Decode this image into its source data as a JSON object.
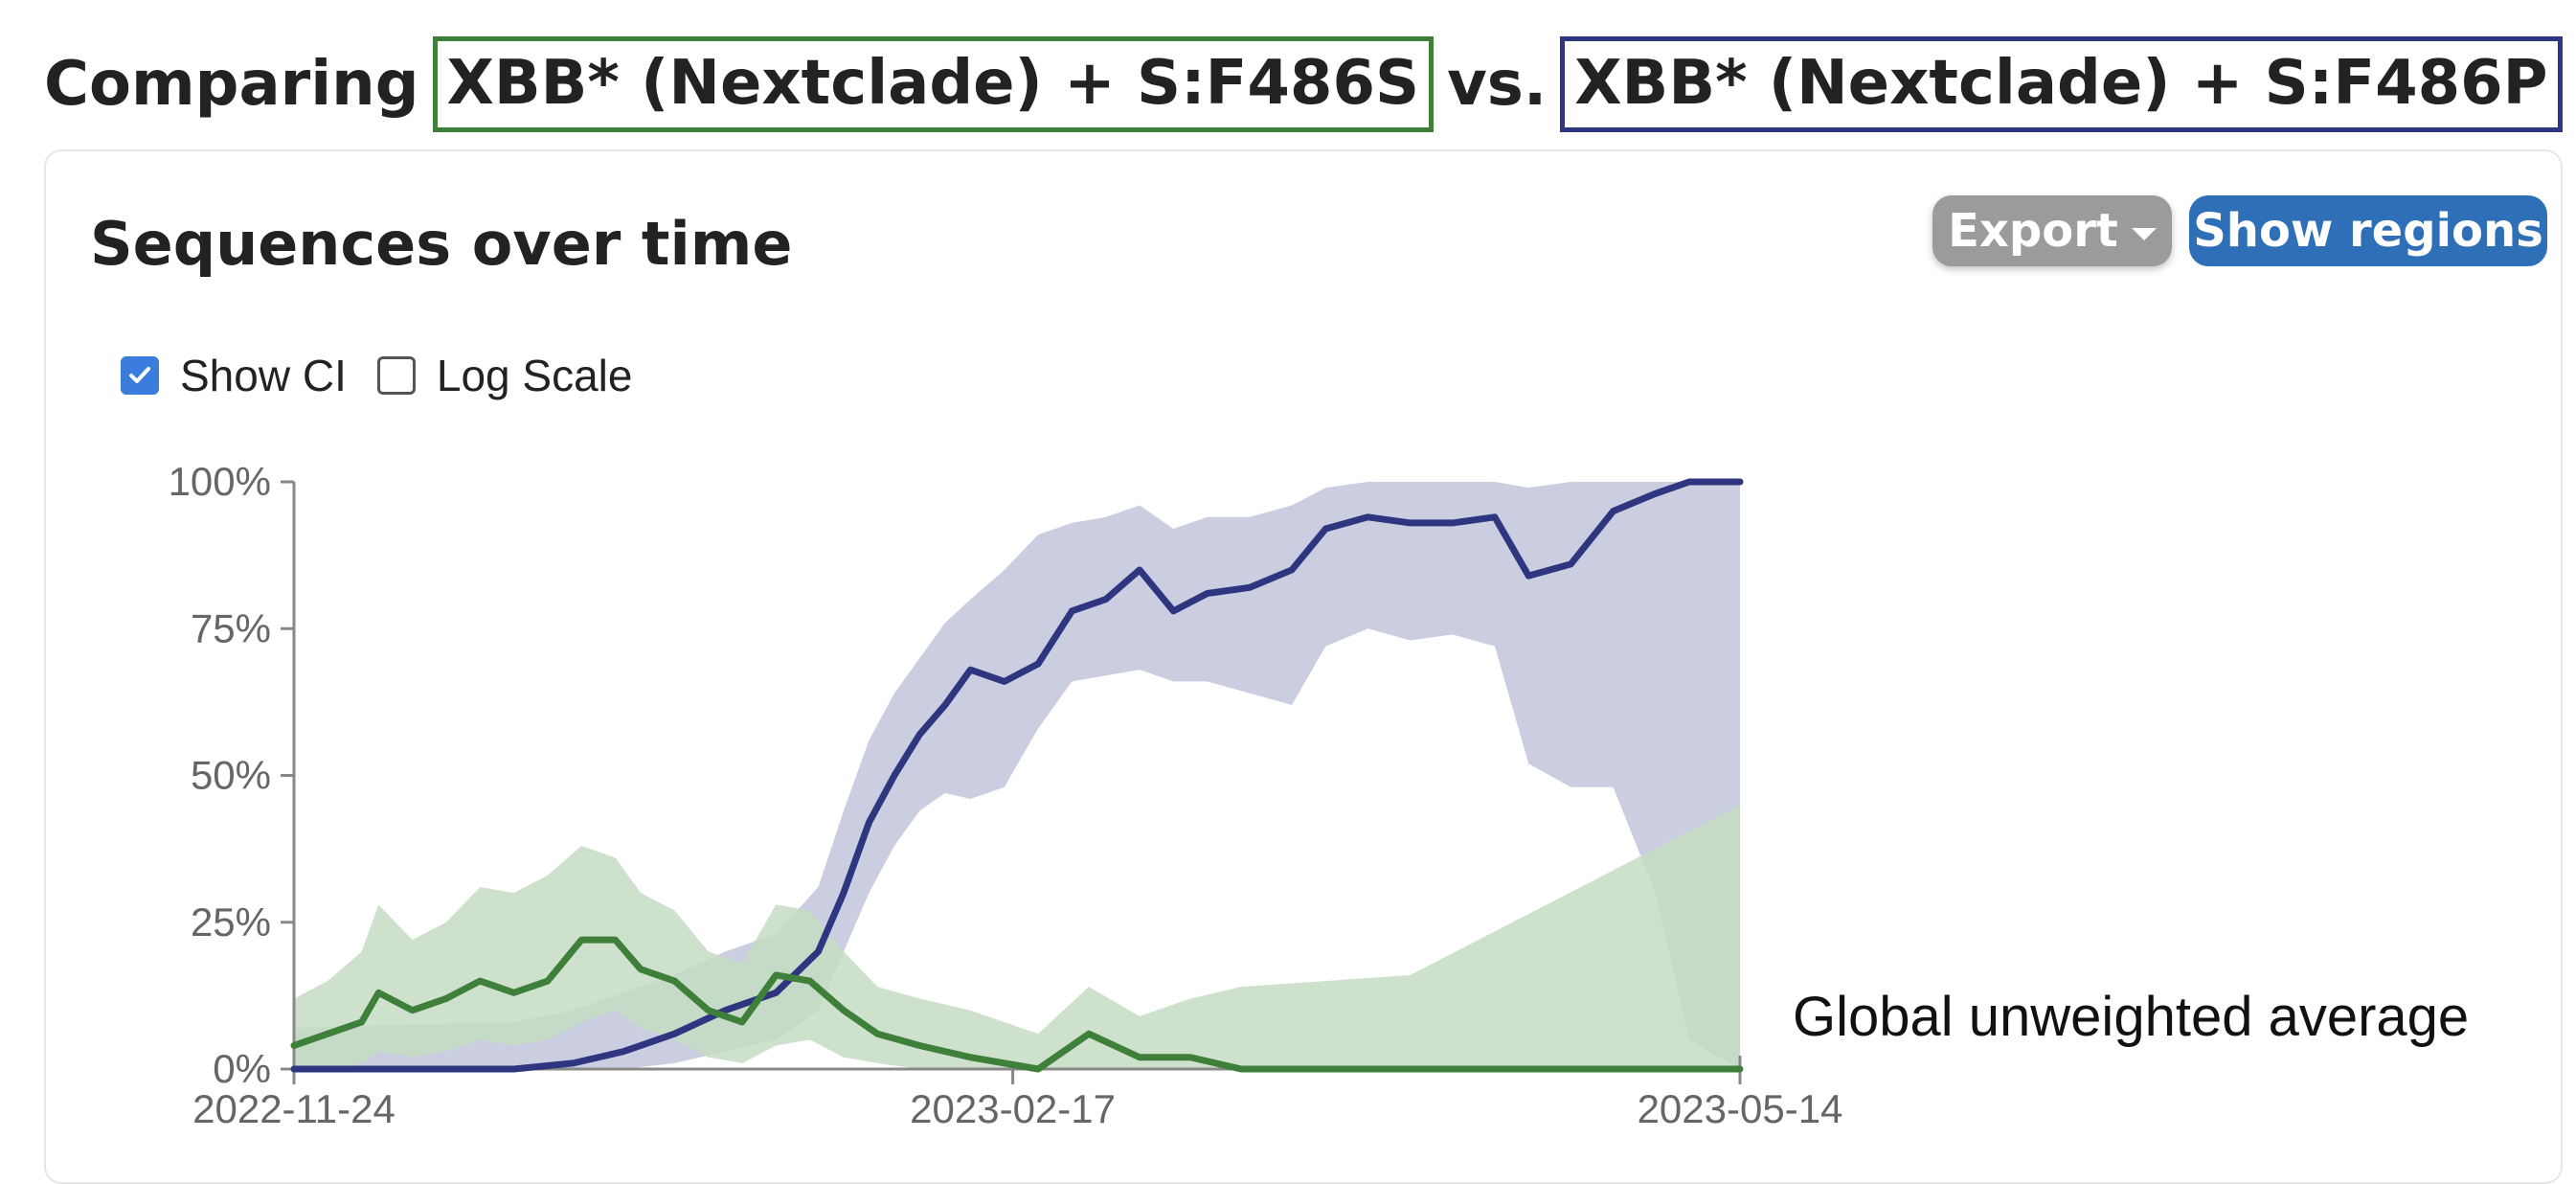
{
  "heading": {
    "prefix": "Comparing",
    "variant_a": "XBB* (Nextclade) + S:F486S",
    "separator": "vs.",
    "variant_b": "XBB* (Nextclade) + S:F486P",
    "variant_a_color": "#3e7f3a",
    "variant_b_color": "#2e3680"
  },
  "card": {
    "title": "Sequences over time",
    "export_label": "Export",
    "show_regions_label": "Show regions",
    "show_ci_label": "Show CI",
    "show_ci_checked": true,
    "log_scale_label": "Log Scale",
    "log_scale_checked": false
  },
  "chart_data": {
    "type": "line",
    "y_format": "percent",
    "ylim": [
      0,
      100
    ],
    "yticks": [
      "0%",
      "25%",
      "50%",
      "75%",
      "100%"
    ],
    "xticks": [
      "2022-11-24",
      "2023-02-17",
      "2023-05-14"
    ],
    "xlim": [
      "2022-11-24",
      "2023-05-14"
    ],
    "annotation": "Global unweighted average",
    "show_ci": true,
    "series": [
      {
        "color": "#2e3680",
        "ci_color": "#c2c5dc",
        "points": [
          [
            "2022-11-24",
            0
          ],
          [
            "2022-12-20",
            0
          ],
          [
            "2022-12-27",
            1
          ],
          [
            "2023-01-02",
            3
          ],
          [
            "2023-01-08",
            6
          ],
          [
            "2023-01-14",
            10
          ],
          [
            "2023-01-20",
            13
          ],
          [
            "2023-01-25",
            20
          ],
          [
            "2023-01-28",
            30
          ],
          [
            "2023-01-31",
            42
          ],
          [
            "2023-02-03",
            50
          ],
          [
            "2023-02-06",
            57
          ],
          [
            "2023-02-09",
            62
          ],
          [
            "2023-02-12",
            68
          ],
          [
            "2023-02-16",
            66
          ],
          [
            "2023-02-20",
            69
          ],
          [
            "2023-02-24",
            78
          ],
          [
            "2023-02-28",
            80
          ],
          [
            "2023-03-04",
            85
          ],
          [
            "2023-03-08",
            78
          ],
          [
            "2023-03-12",
            81
          ],
          [
            "2023-03-17",
            82
          ],
          [
            "2023-03-22",
            85
          ],
          [
            "2023-03-26",
            92
          ],
          [
            "2023-03-31",
            94
          ],
          [
            "2023-04-05",
            93
          ],
          [
            "2023-04-10",
            93
          ],
          [
            "2023-04-15",
            94
          ],
          [
            "2023-04-19",
            84
          ],
          [
            "2023-04-24",
            86
          ],
          [
            "2023-04-29",
            95
          ],
          [
            "2023-05-04",
            98
          ],
          [
            "2023-05-08",
            100
          ],
          [
            "2023-05-14",
            100
          ]
        ],
        "ci_low": [
          0,
          0,
          0,
          0,
          1,
          3,
          5,
          10,
          20,
          30,
          38,
          44,
          47,
          46,
          48,
          58,
          66,
          67,
          68,
          66,
          66,
          64,
          62,
          72,
          75,
          73,
          74,
          72,
          52,
          48,
          48,
          30,
          5,
          0
        ],
        "ci_high": [
          7,
          8,
          10,
          13,
          16,
          20,
          23,
          31,
          44,
          56,
          64,
          70,
          76,
          80,
          85,
          91,
          93,
          94,
          96,
          92,
          94,
          94,
          96,
          99,
          100,
          100,
          100,
          100,
          99,
          100,
          100,
          100,
          100,
          100
        ]
      },
      {
        "color": "#3e7f3a",
        "ci_color": "#c5dcc3",
        "points": [
          [
            "2022-11-24",
            4
          ],
          [
            "2022-11-28",
            6
          ],
          [
            "2022-12-02",
            8
          ],
          [
            "2022-12-04",
            13
          ],
          [
            "2022-12-08",
            10
          ],
          [
            "2022-12-12",
            12
          ],
          [
            "2022-12-16",
            15
          ],
          [
            "2022-12-20",
            13
          ],
          [
            "2022-12-24",
            15
          ],
          [
            "2022-12-28",
            22
          ],
          [
            "2023-01-01",
            22
          ],
          [
            "2023-01-04",
            17
          ],
          [
            "2023-01-08",
            15
          ],
          [
            "2023-01-12",
            10
          ],
          [
            "2023-01-16",
            8
          ],
          [
            "2023-01-20",
            16
          ],
          [
            "2023-01-24",
            15
          ],
          [
            "2023-01-28",
            10
          ],
          [
            "2023-02-01",
            6
          ],
          [
            "2023-02-06",
            4
          ],
          [
            "2023-02-12",
            2
          ],
          [
            "2023-02-20",
            0
          ],
          [
            "2023-02-26",
            6
          ],
          [
            "2023-03-04",
            2
          ],
          [
            "2023-03-10",
            2
          ],
          [
            "2023-03-16",
            0
          ],
          [
            "2023-04-05",
            0
          ],
          [
            "2023-05-14",
            0
          ]
        ],
        "ci_low": [
          0,
          0,
          1,
          3,
          2,
          3,
          5,
          4,
          5,
          8,
          10,
          7,
          5,
          2,
          1,
          4,
          5,
          2,
          1,
          0,
          0,
          0,
          0,
          0,
          0,
          0,
          0,
          0
        ],
        "ci_high": [
          12,
          15,
          20,
          28,
          22,
          25,
          31,
          30,
          33,
          38,
          36,
          30,
          27,
          20,
          18,
          28,
          27,
          20,
          14,
          12,
          10,
          6,
          14,
          9,
          12,
          14,
          16,
          45
        ]
      }
    ]
  }
}
